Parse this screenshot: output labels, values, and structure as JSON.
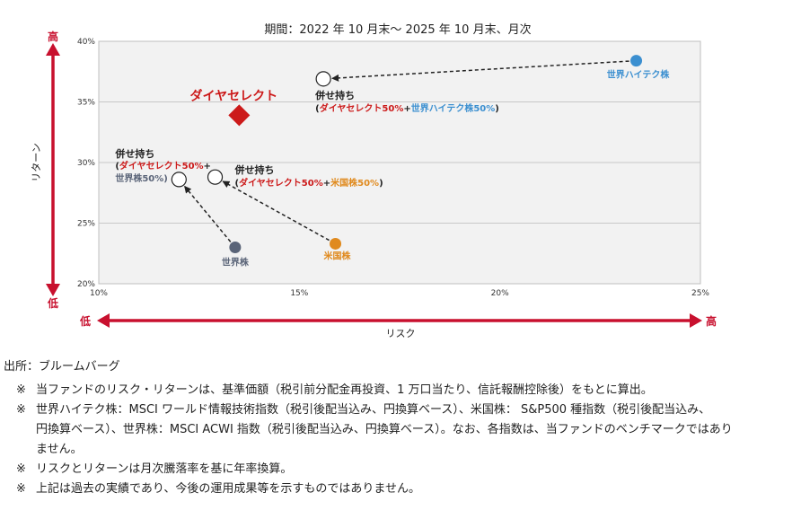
{
  "chart_data": {
    "type": "scatter",
    "title": "期間：2022 年 10 月末～ 2025 年 10 月末、月次",
    "xlabel": "リスク",
    "ylabel": "リターン",
    "xlim": [
      10,
      25
    ],
    "ylim": [
      20,
      40
    ],
    "xticks": [
      "10%",
      "15%",
      "20%",
      "25%"
    ],
    "yticks": [
      "20%",
      "25%",
      "30%",
      "35%",
      "40%"
    ],
    "grid": true,
    "axis_ends": {
      "y_high": "高",
      "y_low": "低",
      "x_low": "低",
      "x_high": "高"
    },
    "points": [
      {
        "id": "diamond",
        "x": 13.5,
        "y": 33.9,
        "label": "ダイヤセレクト",
        "color": "#cc1a1a",
        "marker": "diamond"
      },
      {
        "id": "world_tech",
        "x": 23.4,
        "y": 38.4,
        "label": "世界ハイテク株",
        "color": "#3b8fd0",
        "marker": "circle"
      },
      {
        "id": "world",
        "x": 13.4,
        "y": 23.0,
        "label": "世界株",
        "color": "#5a6478",
        "marker": "circle"
      },
      {
        "id": "us",
        "x": 15.9,
        "y": 23.3,
        "label": "米国株",
        "color": "#e08a1e",
        "marker": "circle"
      },
      {
        "id": "combo_tech",
        "x": 15.6,
        "y": 36.9,
        "marker": "open-circle",
        "label_lines": [
          [
            {
              "t": "併せ持ち",
              "c": "#222"
            }
          ],
          [
            {
              "t": "(",
              "c": "#222"
            },
            {
              "t": "ダイヤセレクト50%",
              "c": "#cc1a1a"
            },
            {
              "t": "+",
              "c": "#222"
            },
            {
              "t": "世界ハイテク株50%",
              "c": "#3b8fd0"
            },
            {
              "t": ")",
              "c": "#222"
            }
          ]
        ]
      },
      {
        "id": "combo_world",
        "x": 12.0,
        "y": 28.6,
        "marker": "open-circle",
        "label_lines": [
          [
            {
              "t": "併せ持ち",
              "c": "#222"
            }
          ],
          [
            {
              "t": "(",
              "c": "#222"
            },
            {
              "t": "ダイヤセレクト50%",
              "c": "#cc1a1a"
            },
            {
              "t": "+",
              "c": "#222"
            }
          ],
          [
            {
              "t": "世界株50%)",
              "c": "#5a6478"
            }
          ]
        ]
      },
      {
        "id": "combo_us",
        "x": 12.9,
        "y": 28.8,
        "marker": "open-circle",
        "label_lines": [
          [
            {
              "t": "併せ持ち",
              "c": "#222"
            }
          ],
          [
            {
              "t": "(",
              "c": "#222"
            },
            {
              "t": "ダイヤセレクト50%",
              "c": "#cc1a1a"
            },
            {
              "t": "+",
              "c": "#222"
            },
            {
              "t": "米国株50%",
              "c": "#e08a1e"
            },
            {
              "t": ")",
              "c": "#222"
            }
          ]
        ]
      }
    ],
    "arrows": [
      {
        "from": "world_tech",
        "to": "combo_tech"
      },
      {
        "from": "world",
        "to": "combo_world"
      },
      {
        "from": "us",
        "to": "combo_us"
      }
    ]
  },
  "notes": {
    "source": "出所：ブルームバーグ",
    "mark": "※",
    "items": [
      [
        "当ファンドのリスク・リターンは、基準価額（税引前分配金再投資、1 万口当たり、信託報酬控除後）をもとに算出。"
      ],
      [
        "世界ハイテク株：MSCI ワールド情報技術指数（税引後配当込み、円換算ベース）、米国株： S&P500 種指数（税引後配当込み、",
        "円換算ベース）、世界株：MSCI ACWI 指数（税引後配当込み、円換算ベース）。なお、各指数は、当ファンドのベンチマークではあり",
        "ません。"
      ],
      [
        "リスクとリターンは月次騰落率を基に年率換算。"
      ],
      [
        "上記は過去の実績であり、今後の運用成果等を示すものではありません。"
      ]
    ]
  }
}
